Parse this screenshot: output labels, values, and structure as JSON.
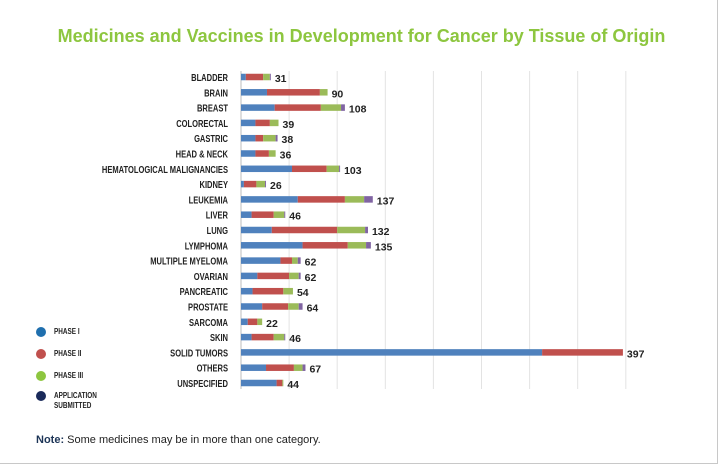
{
  "chart_data": {
    "type": "bar",
    "orientation": "horizontal",
    "stacked": true,
    "title": "Medicines and Vaccines in Development for Cancer by Tissue of Origin",
    "categories": [
      "BLADDER",
      "BRAIN",
      "BREAST",
      "COLORECTAL",
      "GASTRIC",
      "HEAD & NECK",
      "HEMATOLOGICAL MALIGNANCIES",
      "KIDNEY",
      "LEUKEMIA",
      "LIVER",
      "LUNG",
      "LYMPHOMA",
      "MULTIPLE MYELOMA",
      "OVARIAN",
      "PANCREATIC",
      "PROSTATE",
      "SARCOMA",
      "SKIN",
      "SOLID TUMORS",
      "OTHERS",
      "UNSPECIFIED"
    ],
    "series": [
      {
        "name": "PHASE I",
        "color": "#4f81bd",
        "values": [
          5,
          27,
          35,
          15,
          15,
          15,
          53,
          3,
          59,
          11,
          32,
          64,
          41,
          17,
          12,
          22,
          7,
          11,
          313,
          26,
          37
        ]
      },
      {
        "name": "PHASE II",
        "color": "#c0504d",
        "values": [
          18,
          55,
          48,
          15,
          8,
          14,
          36,
          13,
          49,
          23,
          68,
          47,
          12,
          33,
          32,
          27,
          10,
          23,
          84,
          29,
          6
        ]
      },
      {
        "name": "PHASE III",
        "color": "#9bbb59",
        "values": [
          7,
          8,
          21,
          9,
          13,
          7,
          13,
          9,
          20,
          11,
          29,
          19,
          6,
          10,
          10,
          11,
          5,
          11,
          0,
          9,
          1
        ]
      },
      {
        "name": "APPLICATION SUBMITTED",
        "color": "#8064a2",
        "legend_color": "#1a2a5a",
        "values": [
          1,
          0,
          4,
          0,
          2,
          0,
          1,
          1,
          9,
          1,
          3,
          5,
          3,
          2,
          0,
          4,
          0,
          1,
          0,
          3,
          0
        ]
      }
    ],
    "totals": [
      31,
      90,
      108,
      39,
      38,
      36,
      103,
      26,
      137,
      46,
      132,
      135,
      62,
      62,
      54,
      64,
      22,
      46,
      397,
      67,
      44
    ],
    "xlim": [
      0,
      400
    ],
    "grid": true,
    "legend_position": "bottom-left",
    "legend_dot_colors": [
      "#1f6fae",
      "#c0504d",
      "#8dc63f",
      "#1a2a5a"
    ]
  },
  "note": {
    "label": "Note:",
    "text": " Some medicines may be in more than one category."
  }
}
